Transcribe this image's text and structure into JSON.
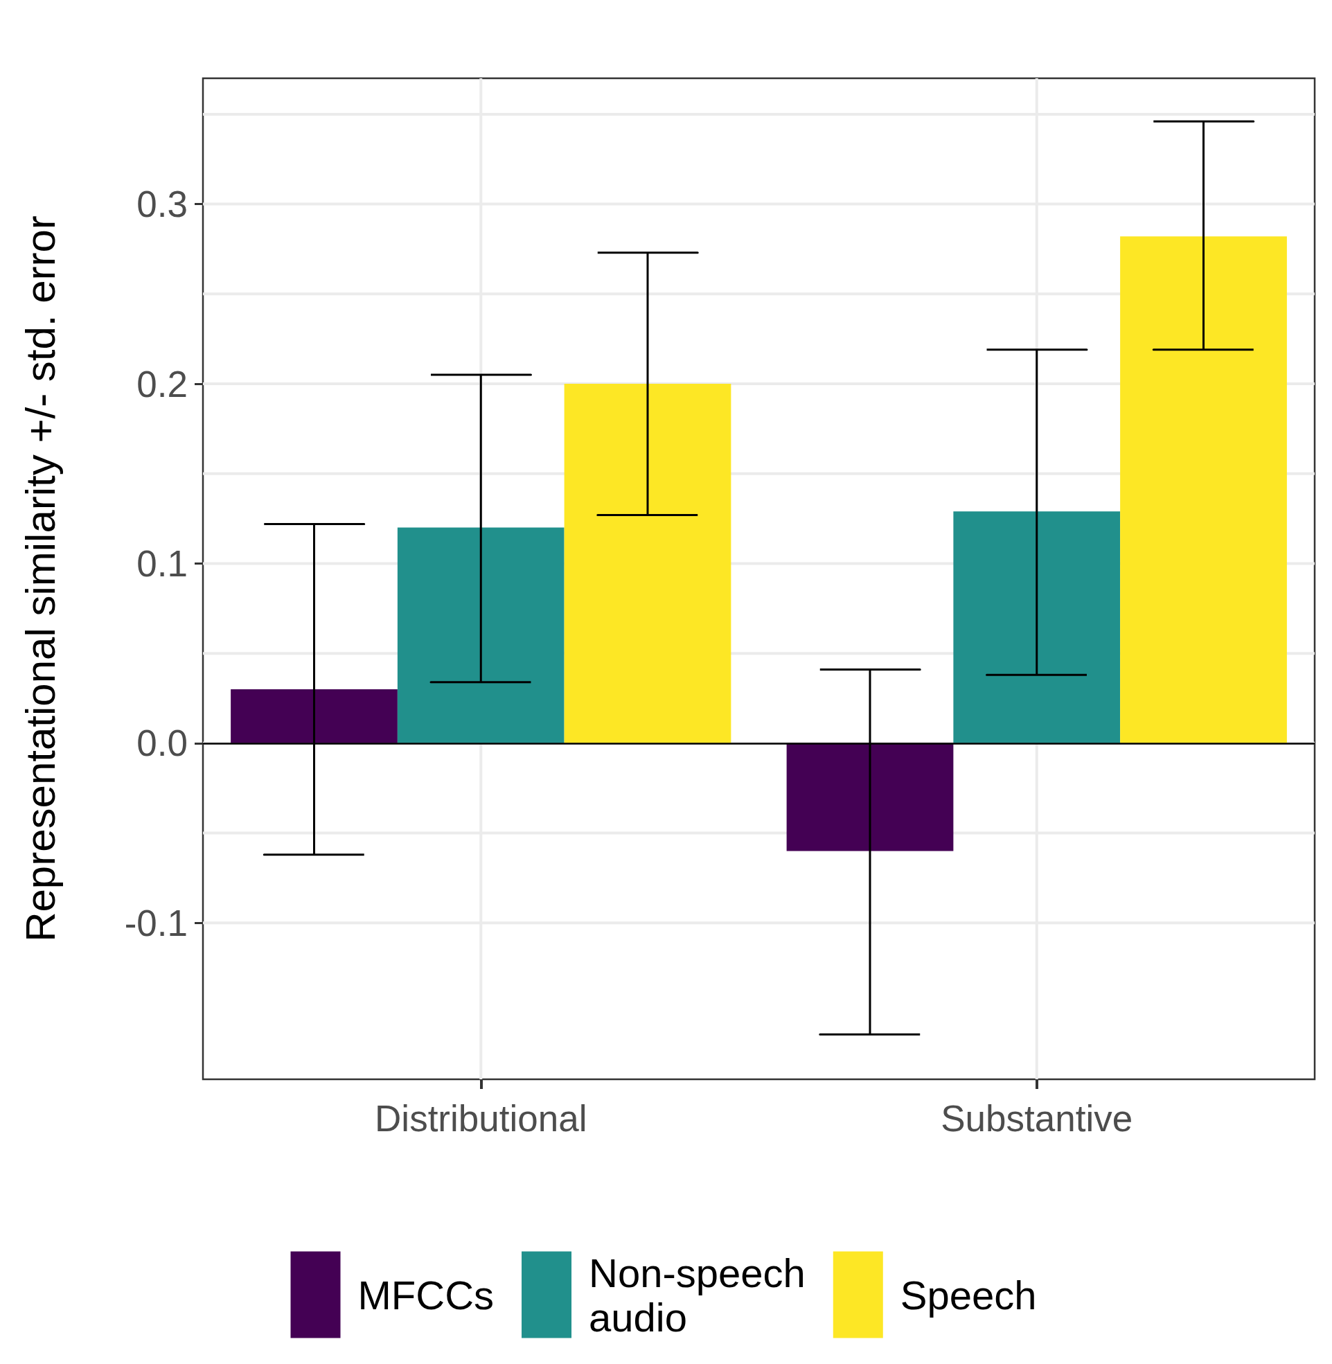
{
  "chart_data": {
    "type": "bar",
    "ylabel": "Representational similarity +/- std. error",
    "categories": [
      "Distributional",
      "Substantive"
    ],
    "series": [
      {
        "name": "MFCCs",
        "color": "#440154",
        "values": [
          0.03,
          -0.06
        ],
        "errors": [
          [
            -0.062,
            0.122
          ],
          [
            -0.162,
            0.041
          ]
        ]
      },
      {
        "name": "Non-speech\naudio",
        "color": "#21908c",
        "values": [
          0.12,
          0.129
        ],
        "errors": [
          [
            0.034,
            0.205
          ],
          [
            0.038,
            0.219
          ]
        ]
      },
      {
        "name": "Speech",
        "color": "#fde725",
        "values": [
          0.2,
          0.282
        ],
        "errors": [
          [
            0.127,
            0.273
          ],
          [
            0.219,
            0.346
          ]
        ]
      }
    ],
    "ylim": [
      -0.187,
      0.37
    ],
    "yticks": [
      -0.1,
      {
        "value": -0.05,
        "label": null
      },
      {
        "value": 0,
        "label": "0.0"
      },
      {
        "value": 0.05,
        "label": null
      },
      0.1,
      {
        "value": 0.15,
        "label": null
      },
      0.2,
      {
        "value": 0.25,
        "label": null
      },
      0.3,
      {
        "value": 0.35,
        "label": null
      }
    ],
    "ref_lines": [
      {
        "axis": "y",
        "value": 0,
        "color": "#000000"
      }
    ],
    "grid": true,
    "legend": "bottom"
  }
}
